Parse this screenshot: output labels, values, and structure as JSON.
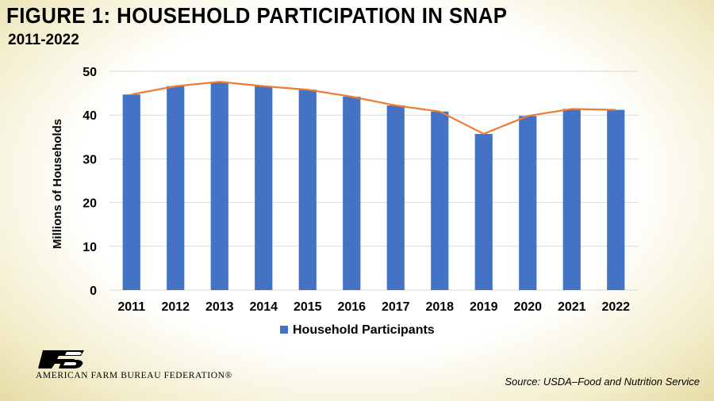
{
  "header": {
    "title": "FIGURE  1: HOUSEHOLD PARTICIPATION IN SNAP",
    "subtitle": "2011-2022"
  },
  "footer": {
    "org_name": "AMERICAN FARM BUREAU FEDERATION®",
    "logo_icon": "farm-bureau-fb-icon",
    "source": "Source: USDA–Food and Nutrition Service"
  },
  "colors": {
    "bar": "#4472c4",
    "line": "#ed7d31",
    "logo": "#000000"
  },
  "chart_data": {
    "type": "bar",
    "categories": [
      "2011",
      "2012",
      "2013",
      "2014",
      "2015",
      "2016",
      "2017",
      "2018",
      "2019",
      "2020",
      "2021",
      "2022"
    ],
    "series": [
      {
        "name": "Household Participants",
        "type": "bar",
        "values": [
          44.7,
          46.6,
          47.6,
          46.6,
          45.8,
          44.2,
          42.2,
          40.8,
          35.7,
          39.8,
          41.4,
          41.2
        ]
      },
      {
        "type": "line",
        "values": [
          44.7,
          46.6,
          47.6,
          46.6,
          45.8,
          44.2,
          42.2,
          40.8,
          35.7,
          39.8,
          41.4,
          41.2
        ]
      }
    ],
    "ylabel": "Millions of Households",
    "ylim": [
      0,
      50
    ],
    "yticks": [
      0,
      10,
      20,
      30,
      40,
      50
    ],
    "grid": true,
    "legend": "bottom-center"
  }
}
